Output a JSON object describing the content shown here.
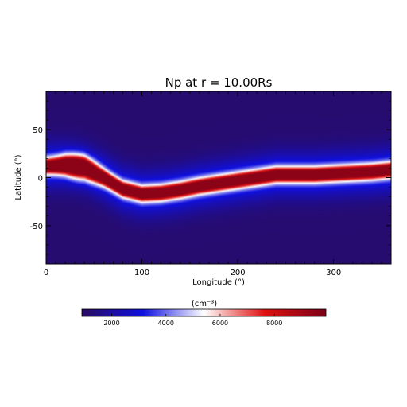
{
  "chart_data": {
    "type": "heatmap",
    "title": "Np at r = 10.00Rs",
    "xlabel": "Longitude (°)",
    "ylabel": "Latitude (°)",
    "xlim": [
      0,
      360
    ],
    "ylim": [
      -90,
      90
    ],
    "xticks": [
      0,
      100,
      200,
      300
    ],
    "yticks": [
      -50,
      0,
      50
    ],
    "colorbar": {
      "label": "(cm⁻³)",
      "range": [
        900,
        9900
      ],
      "ticks": [
        2000,
        4000,
        6000,
        8000
      ],
      "colors": [
        "#2a0b5e",
        "#1010e0",
        "#ffffff",
        "#e01010",
        "#7a0018"
      ]
    },
    "field": {
      "background": 1200,
      "peak": 9500,
      "sheet_center_lat": [
        [
          0,
          12
        ],
        [
          20,
          13
        ],
        [
          40,
          10
        ],
        [
          60,
          0
        ],
        [
          80,
          -12
        ],
        [
          100,
          -17
        ],
        [
          120,
          -16
        ],
        [
          140,
          -13
        ],
        [
          160,
          -9
        ],
        [
          180,
          -6
        ],
        [
          200,
          -3
        ],
        [
          220,
          0
        ],
        [
          240,
          3
        ],
        [
          260,
          3
        ],
        [
          280,
          3
        ],
        [
          300,
          4
        ],
        [
          320,
          5
        ],
        [
          340,
          6
        ],
        [
          360,
          8
        ]
      ]
    }
  }
}
